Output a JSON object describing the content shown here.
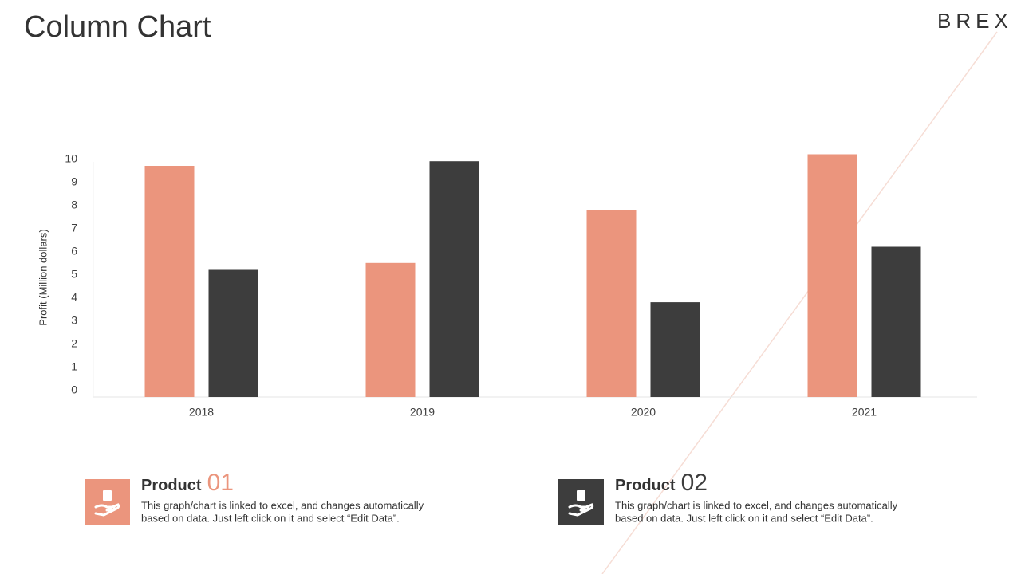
{
  "chart_data": {
    "type": "bar",
    "title": "Column Chart",
    "logo": "BREX",
    "y_label": "Profit  (Million dollars)",
    "categories": [
      "2018",
      "2019",
      "2020",
      "2021"
    ],
    "series": [
      {
        "color": "#eb957d",
        "values": [
          10.0,
          5.8,
          8.1,
          10.5
        ]
      },
      {
        "color": "#3d3d3d",
        "values": [
          5.5,
          10.2,
          4.1,
          6.5
        ]
      }
    ],
    "ylim": [
      0,
      10.5
    ],
    "yticks": [
      0,
      1,
      2,
      3,
      4,
      5,
      6,
      7,
      8,
      9,
      10
    ],
    "grid": false,
    "legend": [
      {
        "label": "Product",
        "number": "01",
        "lines": [
          "This graph/chart is linked to excel,  and changes automatically",
          "based on data. Just left click on it and select “Edit Data”."
        ]
      },
      {
        "label": "Product",
        "number": "02",
        "lines": [
          "This graph/chart is linked to excel,  and changes automatically",
          "based on data. Just left click on it and select “Edit Data”."
        ]
      }
    ]
  }
}
